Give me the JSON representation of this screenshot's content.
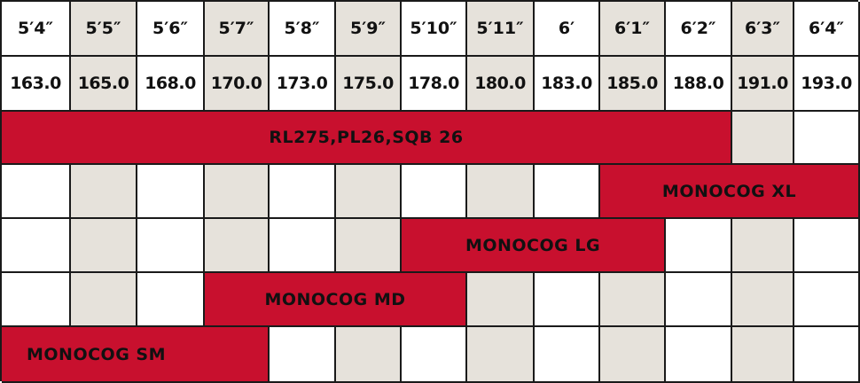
{
  "heights_ft": [
    "5′4″",
    "5′5″",
    "5′6″",
    "5′7″",
    "5′8″",
    "5′9″",
    "5′10″",
    "5′11″",
    "6′",
    "6′1″",
    "6′2″",
    "6′3″",
    "6′4″"
  ],
  "heights_cm": [
    "163.0",
    "165.0",
    "168.0",
    "170.0",
    "173.0",
    "175.0",
    "178.0",
    "180.0",
    "183.0",
    "185.0",
    "188.0",
    "191.0",
    "193.0"
  ],
  "colors": {
    "bar": "#c8102e",
    "alt_column": "#e6e2db",
    "grid": "#1a1a1a"
  },
  "bars": [
    {
      "label": "RL275,PL26,SQB 26",
      "from": "5′4″",
      "to": "6′2″",
      "start": 0,
      "end": 10
    },
    {
      "label": "MONOCOG XL",
      "from": "6′1″",
      "to": "6′4″",
      "start": 9,
      "end": 12
    },
    {
      "label": "MONOCOG LG",
      "from": "5′10″",
      "to": "6′1″",
      "start": 6,
      "end": 9
    },
    {
      "label": "MONOCOG MD",
      "from": "5′7″",
      "to": "5′10″",
      "start": 3,
      "end": 6
    },
    {
      "label": "MONOCOG SM",
      "from": "5′4″",
      "to": "5′7″",
      "start": 0,
      "end": 3
    }
  ]
}
